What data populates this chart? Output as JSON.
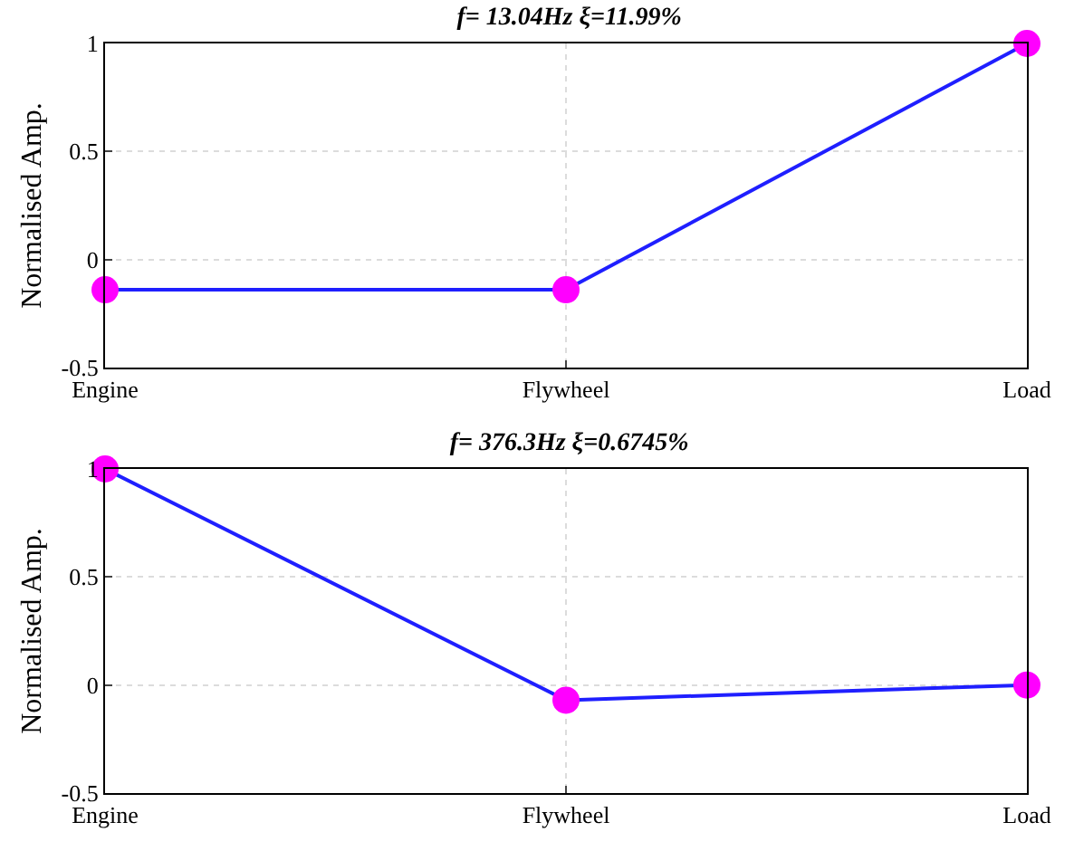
{
  "chart_data": [
    {
      "type": "line",
      "title": "f= 13.04Hz ξ=11.99%",
      "ylabel": "Normalised Amp.",
      "categories": [
        "Engine",
        "Flywheel",
        "Load"
      ],
      "series": [
        {
          "color": "#1f1fff",
          "values": [
            -0.14,
            -0.14,
            1
          ]
        }
      ],
      "ylim": [
        -0.5,
        1
      ],
      "yticks": [
        -0.5,
        0,
        0.5,
        1
      ],
      "grid": true,
      "marker": "circle",
      "line_style": "solid"
    },
    {
      "type": "line",
      "title": "f= 376.3Hz ξ=0.6745%",
      "ylabel": "Normalised Amp.",
      "categories": [
        "Engine",
        "Flywheel",
        "Load"
      ],
      "series": [
        {
          "color": "#1f1fff",
          "values": [
            1,
            -0.07,
            0
          ]
        }
      ],
      "ylim": [
        -0.5,
        1
      ],
      "yticks": [
        -0.5,
        0,
        0.5,
        1
      ],
      "grid": true,
      "marker": "circle",
      "line_style": "solid"
    }
  ]
}
